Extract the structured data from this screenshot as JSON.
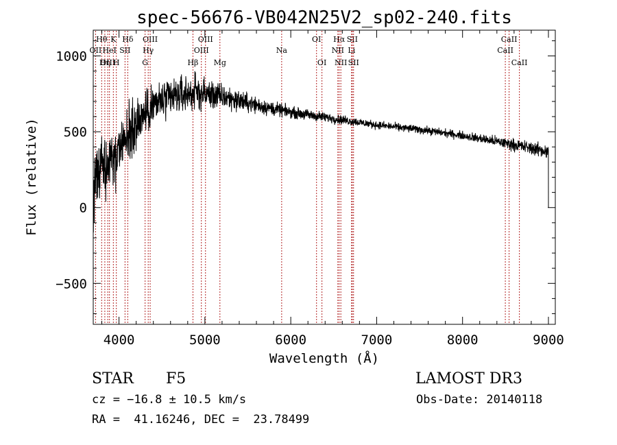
{
  "chart_data": {
    "type": "line",
    "title": "spec-56676-VB042N25V2_sp02-240.fits",
    "xlabel": "Wavelength (Å)",
    "ylabel": "Flux (relative)",
    "xlim": [
      3700,
      9080
    ],
    "ylim": [
      -770,
      1170
    ],
    "xticks": [
      4000,
      5000,
      6000,
      7000,
      8000,
      9000
    ],
    "yticks": [
      -500,
      0,
      500,
      1000
    ],
    "xtick_labels": [
      "4000",
      "5000",
      "6000",
      "7000",
      "8000",
      "9000"
    ],
    "ytick_labels": [
      "−500",
      "0",
      "500",
      "1000"
    ],
    "continuum": [
      [
        3700,
        150
      ],
      [
        3800,
        250
      ],
      [
        3900,
        300
      ],
      [
        4000,
        380
      ],
      [
        4100,
        480
      ],
      [
        4200,
        560
      ],
      [
        4300,
        620
      ],
      [
        4400,
        680
      ],
      [
        4500,
        700
      ],
      [
        4700,
        740
      ],
      [
        4900,
        760
      ],
      [
        5100,
        740
      ],
      [
        5300,
        720
      ],
      [
        5500,
        690
      ],
      [
        5800,
        650
      ],
      [
        6100,
        620
      ],
      [
        6400,
        595
      ],
      [
        6700,
        570
      ],
      [
        7000,
        545
      ],
      [
        7500,
        515
      ],
      [
        8000,
        475
      ],
      [
        8500,
        425
      ],
      [
        9000,
        370
      ]
    ],
    "noise_regions": [
      [
        3700,
        350
      ],
      [
        4000,
        290
      ],
      [
        4300,
        230
      ],
      [
        4700,
        190
      ],
      [
        5100,
        140
      ],
      [
        5500,
        90
      ],
      [
        6000,
        55
      ],
      [
        7000,
        38
      ],
      [
        8000,
        40
      ],
      [
        9000,
        70
      ]
    ],
    "end_drop": [
      9000,
      0
    ],
    "lines": [
      {
        "label": "Hθ",
        "wavelength": 3798,
        "row": 1
      },
      {
        "label": "OII",
        "wavelength": 3727,
        "row": 2
      },
      {
        "label": "OIII",
        "wavelength": 3869,
        "row": 3
      },
      {
        "label": "K",
        "wavelength": 3934,
        "row": 1
      },
      {
        "label": "Hη",
        "wavelength": 3835,
        "row": 3
      },
      {
        "label": "HeI",
        "wavelength": 3889,
        "row": 2
      },
      {
        "label": "H",
        "wavelength": 3969,
        "row": 3
      },
      {
        "label": "SII",
        "wavelength": 4070,
        "row": 2
      },
      {
        "label": "Hδ",
        "wavelength": 4102,
        "row": 1
      },
      {
        "label": "OIII",
        "wavelength": 4363,
        "row": 1
      },
      {
        "label": "Hγ",
        "wavelength": 4340,
        "row": 2
      },
      {
        "label": "G",
        "wavelength": 4304,
        "row": 3
      },
      {
        "label": "Hβ",
        "wavelength": 4861,
        "row": 3
      },
      {
        "label": "OIII",
        "wavelength": 5007,
        "row": 1
      },
      {
        "label": "OIII",
        "wavelength": 4959,
        "row": 2
      },
      {
        "label": "Mg",
        "wavelength": 5175,
        "row": 3
      },
      {
        "label": "Na",
        "wavelength": 5894,
        "row": 2
      },
      {
        "label": "OI",
        "wavelength": 6300,
        "row": 1
      },
      {
        "label": "OI",
        "wavelength": 6363,
        "row": 3
      },
      {
        "label": "Hα",
        "wavelength": 6563,
        "row": 1
      },
      {
        "label": "NII",
        "wavelength": 6548,
        "row": 2
      },
      {
        "label": "NII",
        "wavelength": 6583,
        "row": 3
      },
      {
        "label": "SII",
        "wavelength": 6716,
        "row": 1
      },
      {
        "label": "Li",
        "wavelength": 6708,
        "row": 2
      },
      {
        "label": "SII",
        "wavelength": 6731,
        "row": 3
      },
      {
        "label": "CaII",
        "wavelength": 8542,
        "row": 1
      },
      {
        "label": "CaII",
        "wavelength": 8498,
        "row": 2
      },
      {
        "label": "CaII",
        "wavelength": 8662,
        "row": 3
      }
    ]
  },
  "info": {
    "object_class": "STAR",
    "subclass": "F5",
    "survey": "LAMOST DR3",
    "cz": "cz = −16.8 ± 10.5 km/s",
    "obs_date": "Obs-Date: 20140118",
    "coords": "RA =  41.16246, DEC =  23.78499"
  },
  "colors": {
    "spectrum": "#000000",
    "line_marker": "#b22222",
    "axes": "#000000"
  }
}
